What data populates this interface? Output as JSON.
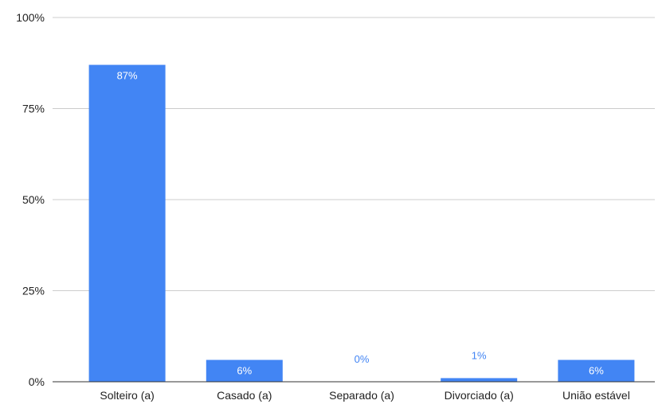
{
  "chart_data": {
    "type": "bar",
    "categories": [
      "Solteiro (a)",
      "Casado (a)",
      "Separado (a)",
      "Divorciado (a)",
      "União estável"
    ],
    "values": [
      87,
      6,
      0,
      1,
      6
    ],
    "data_labels": [
      "87%",
      "6%",
      "0%",
      "1%",
      "6%"
    ],
    "title": "",
    "xlabel": "",
    "ylabel": "",
    "ylim": [
      0,
      100
    ],
    "y_ticks": [
      0,
      25,
      50,
      75,
      100
    ],
    "y_tick_labels": [
      "0%",
      "25%",
      "50%",
      "75%",
      "100%"
    ],
    "grid": true,
    "legend": "none",
    "colors": {
      "bar": "#4285f4",
      "label_inside": "#ffffff",
      "label_outside": "#4285f4",
      "grid": "#cccccc",
      "axis": "#333333",
      "text": "#222222"
    }
  }
}
